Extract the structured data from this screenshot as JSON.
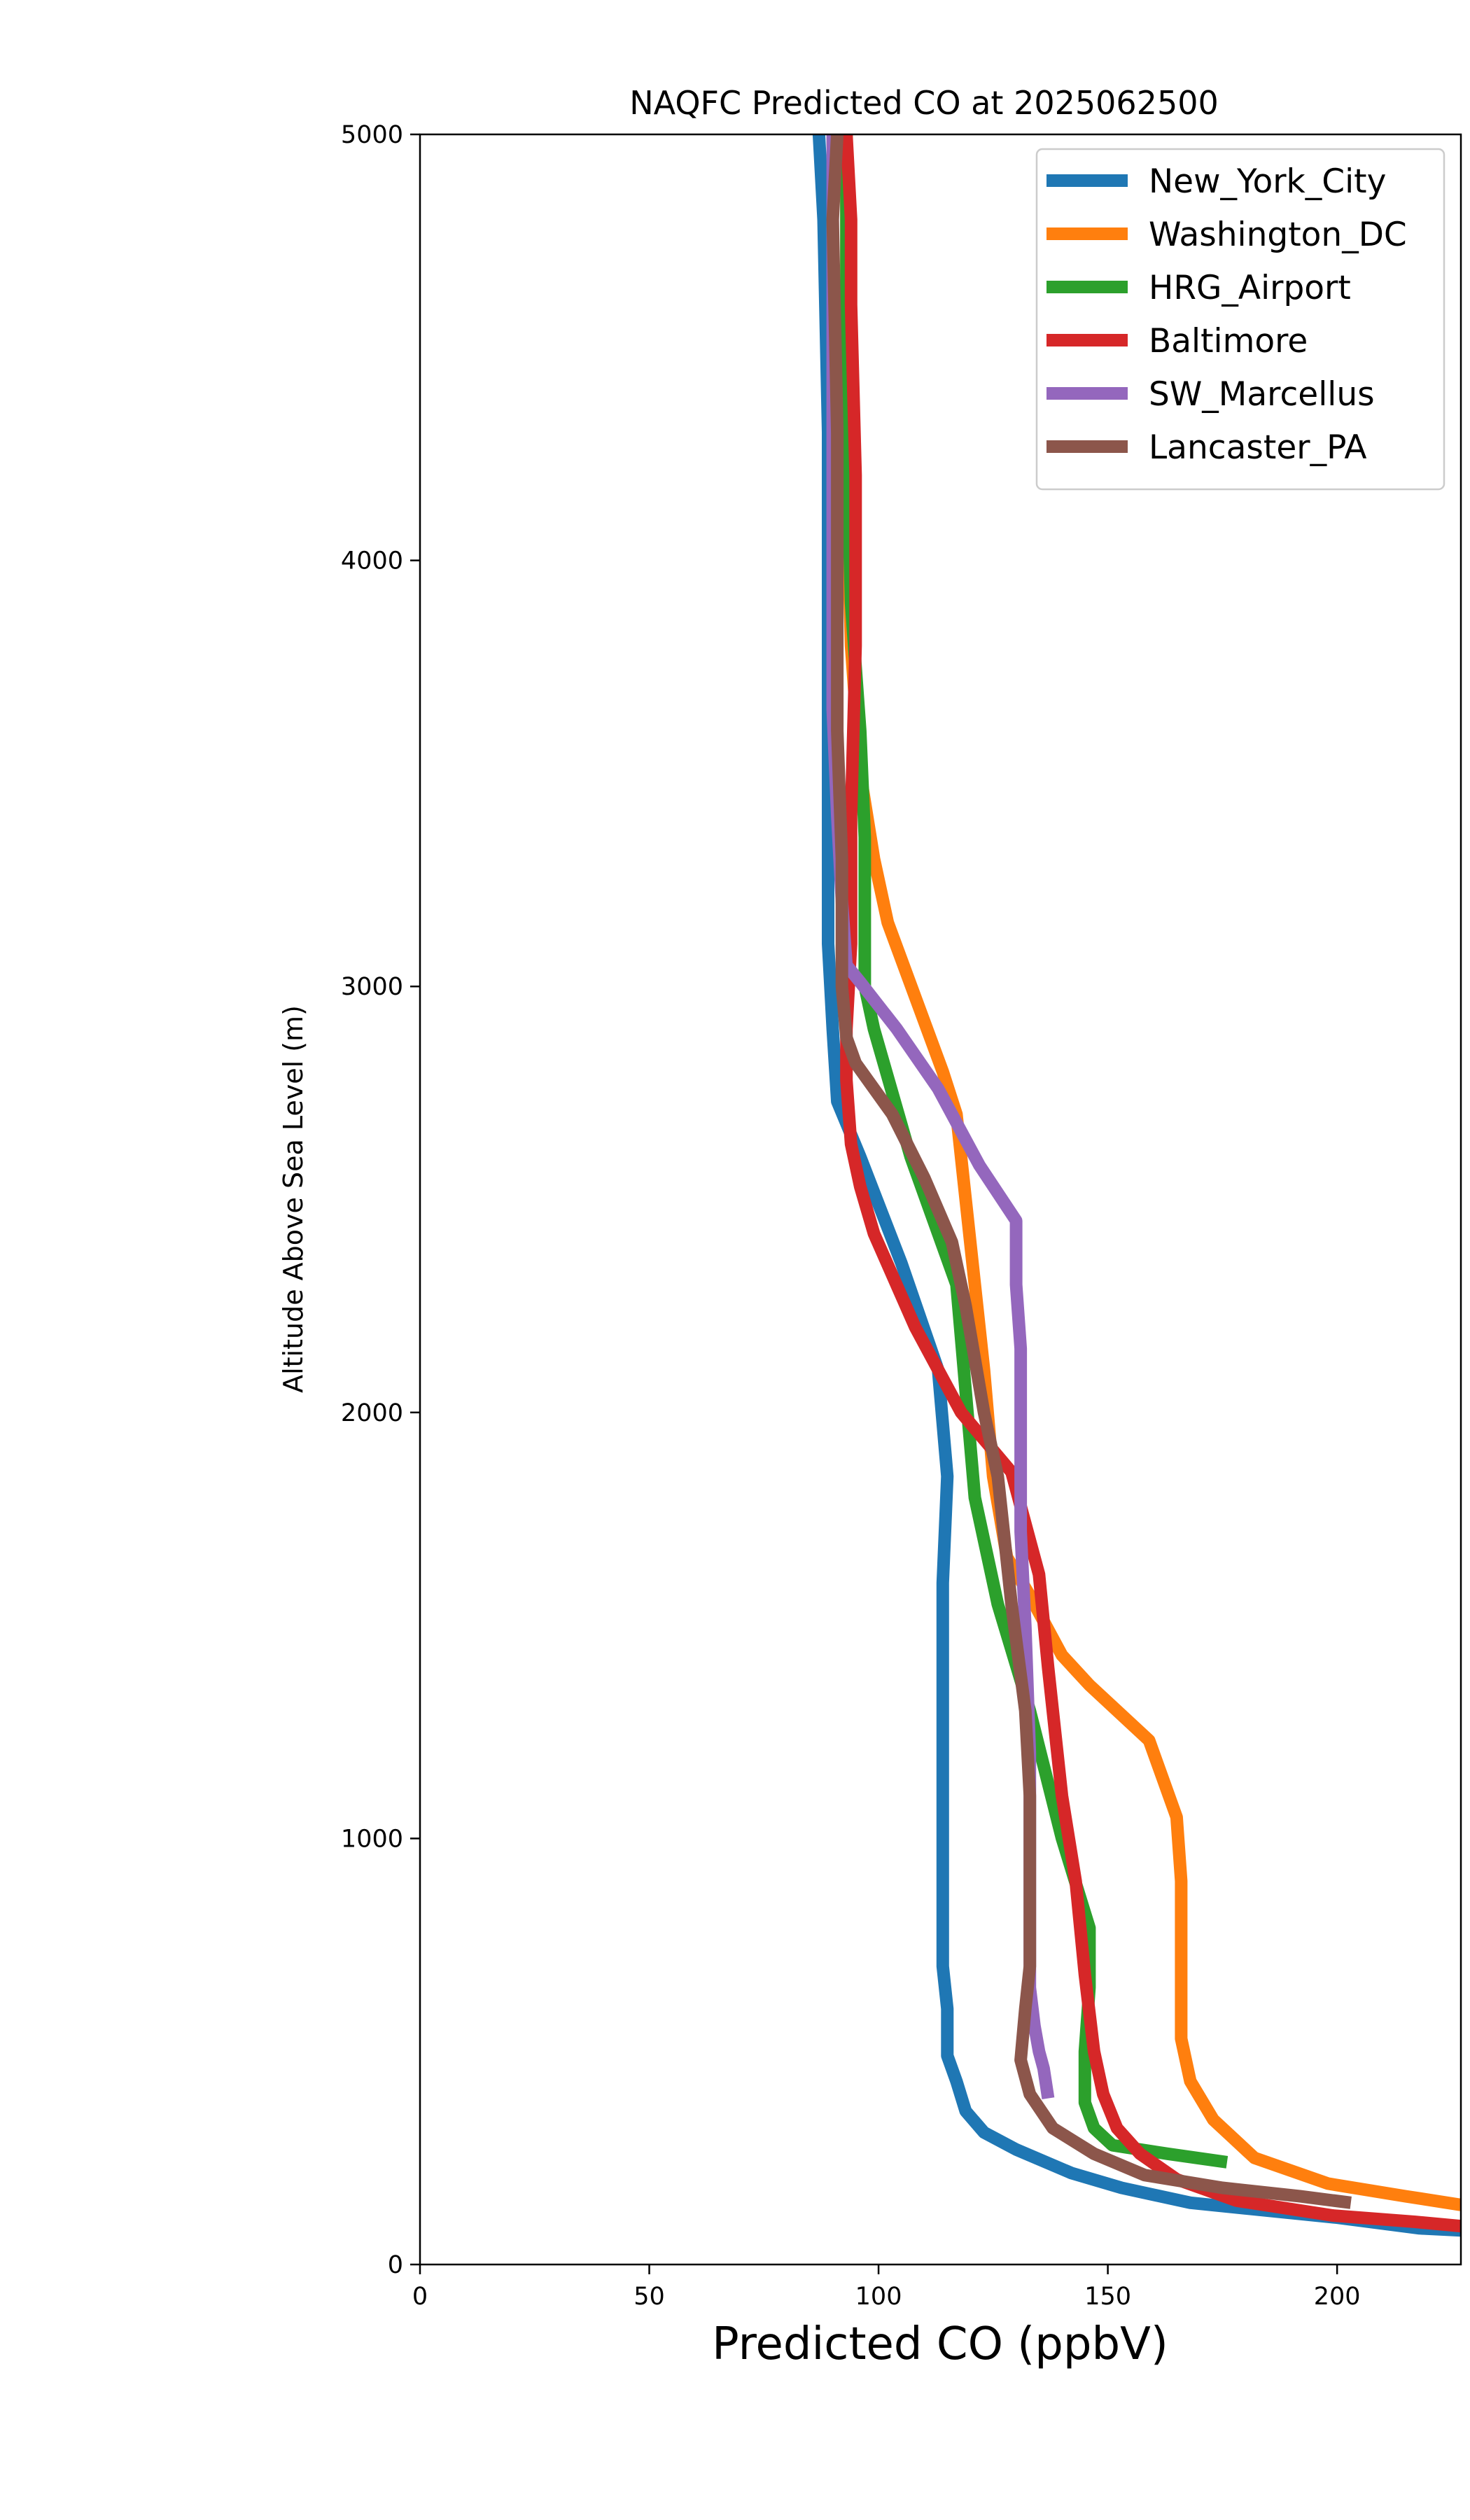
{
  "chart_data": {
    "type": "line",
    "title": "NAQFC Predicted CO at 2025062500",
    "xlabel": "Predicted CO (ppbV)",
    "ylabel": "Altitude Above Sea Level (m)",
    "xlim": [
      0,
      227
    ],
    "ylim": [
      0,
      5000
    ],
    "xticks": [
      0,
      50,
      100,
      150,
      200
    ],
    "yticks": [
      0,
      1000,
      2000,
      3000,
      4000,
      5000
    ],
    "grid": false,
    "legend_position": "top-right",
    "series": [
      {
        "name": "New_York_City",
        "color": "#1f77b4",
        "points": [
          [
            227,
            80
          ],
          [
            218,
            85
          ],
          [
            200,
            110
          ],
          [
            168,
            145
          ],
          [
            153,
            180
          ],
          [
            142,
            215
          ],
          [
            130,
            270
          ],
          [
            123,
            310
          ],
          [
            119,
            360
          ],
          [
            117,
            430
          ],
          [
            115,
            490
          ],
          [
            115,
            600
          ],
          [
            114,
            700
          ],
          [
            114,
            1200
          ],
          [
            114,
            1400
          ],
          [
            114,
            1600
          ],
          [
            115,
            1850
          ],
          [
            113,
            2100
          ],
          [
            105,
            2350
          ],
          [
            96,
            2600
          ],
          [
            91,
            2730
          ],
          [
            90,
            2900
          ],
          [
            89,
            3100
          ],
          [
            89,
            3500
          ],
          [
            89,
            3900
          ],
          [
            89,
            4300
          ],
          [
            88,
            4800
          ],
          [
            87,
            5000
          ]
        ]
      },
      {
        "name": "Washington_DC",
        "color": "#ff7f0e",
        "points": [
          [
            227,
            140
          ],
          [
            215,
            160
          ],
          [
            198,
            190
          ],
          [
            182,
            250
          ],
          [
            173,
            340
          ],
          [
            168,
            430
          ],
          [
            166,
            530
          ],
          [
            166,
            600
          ],
          [
            166,
            750
          ],
          [
            166,
            900
          ],
          [
            165,
            1050
          ],
          [
            159,
            1230
          ],
          [
            146,
            1360
          ],
          [
            140,
            1430
          ],
          [
            133,
            1570
          ],
          [
            128,
            1660
          ],
          [
            125,
            1850
          ],
          [
            123,
            2100
          ],
          [
            121,
            2300
          ],
          [
            119,
            2500
          ],
          [
            117,
            2700
          ],
          [
            114,
            2800
          ],
          [
            102,
            3150
          ],
          [
            99,
            3300
          ],
          [
            96,
            3500
          ],
          [
            94,
            3800
          ],
          [
            93,
            4200
          ],
          [
            93,
            4700
          ],
          [
            93,
            5000
          ]
        ]
      },
      {
        "name": "HRG_Airport",
        "color": "#2ca02c",
        "points": [
          [
            176,
            240
          ],
          [
            163,
            260
          ],
          [
            151,
            280
          ],
          [
            147,
            320
          ],
          [
            145,
            380
          ],
          [
            145,
            500
          ],
          [
            146,
            650
          ],
          [
            146,
            790
          ],
          [
            140,
            1000
          ],
          [
            133,
            1300
          ],
          [
            126,
            1550
          ],
          [
            121,
            1800
          ],
          [
            117,
            2300
          ],
          [
            107,
            2600
          ],
          [
            99,
            2900
          ],
          [
            97,
            3000
          ],
          [
            97,
            3350
          ],
          [
            96,
            3600
          ],
          [
            94,
            3900
          ],
          [
            93,
            4300
          ],
          [
            93,
            4700
          ],
          [
            93,
            5000
          ]
        ]
      },
      {
        "name": "Baltimore",
        "color": "#d62728",
        "points": [
          [
            227,
            90
          ],
          [
            217,
            100
          ],
          [
            199,
            115
          ],
          [
            178,
            150
          ],
          [
            165,
            200
          ],
          [
            157,
            260
          ],
          [
            152,
            320
          ],
          [
            149,
            400
          ],
          [
            147,
            500
          ],
          [
            145,
            680
          ],
          [
            143,
            900
          ],
          [
            140,
            1100
          ],
          [
            137,
            1400
          ],
          [
            135,
            1620
          ],
          [
            129,
            1860
          ],
          [
            118,
            2000
          ],
          [
            108,
            2200
          ],
          [
            99,
            2420
          ],
          [
            96,
            2530
          ],
          [
            94,
            2630
          ],
          [
            93,
            2780
          ],
          [
            93,
            2900
          ],
          [
            94,
            3100
          ],
          [
            94,
            3400
          ],
          [
            95,
            3800
          ],
          [
            95,
            4000
          ],
          [
            95,
            4200
          ],
          [
            94,
            4600
          ],
          [
            94,
            4800
          ],
          [
            93,
            5000
          ]
        ]
      },
      {
        "name": "SW_Marcellus",
        "color": "#9467bd",
        "points": [
          [
            137,
            390
          ],
          [
            136,
            460
          ],
          [
            135,
            500
          ],
          [
            134,
            560
          ],
          [
            133,
            650
          ],
          [
            133,
            900
          ],
          [
            133,
            1200
          ],
          [
            132,
            1500
          ],
          [
            131,
            1720
          ],
          [
            131,
            1950
          ],
          [
            131,
            2150
          ],
          [
            130,
            2300
          ],
          [
            130,
            2450
          ],
          [
            122,
            2580
          ],
          [
            113,
            2760
          ],
          [
            104,
            2900
          ],
          [
            96,
            3010
          ],
          [
            93,
            3050
          ],
          [
            92,
            3200
          ],
          [
            91,
            3400
          ],
          [
            90,
            3650
          ],
          [
            90,
            3900
          ],
          [
            90,
            4200
          ],
          [
            90,
            4600
          ],
          [
            90,
            5000
          ]
        ]
      },
      {
        "name": "Lancaster_PA",
        "color": "#8c564b",
        "points": [
          [
            203,
            145
          ],
          [
            192,
            160
          ],
          [
            175,
            180
          ],
          [
            158,
            210
          ],
          [
            147,
            260
          ],
          [
            138,
            320
          ],
          [
            133,
            400
          ],
          [
            131,
            480
          ],
          [
            132,
            600
          ],
          [
            133,
            700
          ],
          [
            133,
            900
          ],
          [
            133,
            1100
          ],
          [
            132,
            1300
          ],
          [
            129,
            1550
          ],
          [
            126,
            1850
          ],
          [
            123,
            2000
          ],
          [
            119,
            2250
          ],
          [
            116,
            2400
          ],
          [
            110,
            2550
          ],
          [
            103,
            2700
          ],
          [
            95,
            2820
          ],
          [
            93,
            2880
          ],
          [
            92,
            3000
          ],
          [
            92,
            3300
          ],
          [
            91,
            3600
          ],
          [
            91,
            4000
          ],
          [
            91,
            4300
          ],
          [
            90,
            4800
          ],
          [
            91,
            5000
          ]
        ]
      }
    ]
  }
}
